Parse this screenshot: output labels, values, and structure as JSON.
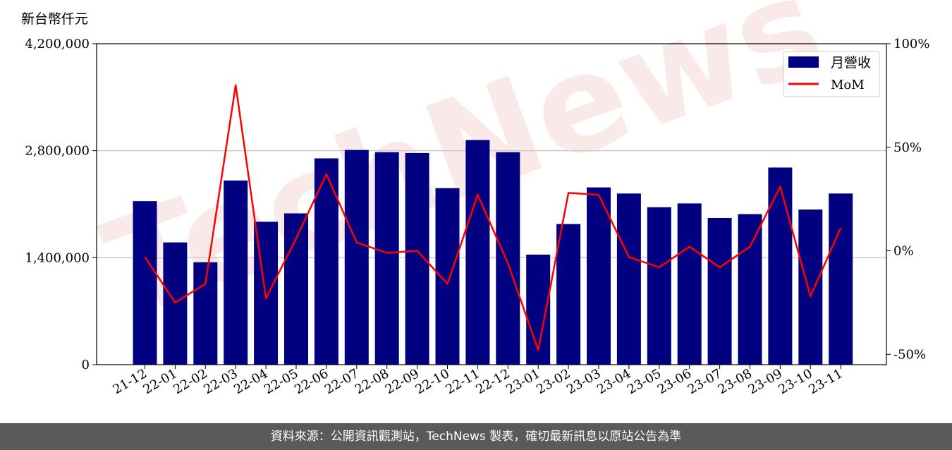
{
  "footer": {
    "source_text": "資料來源：公開資訊觀測站，TechNews 製表，確切最新訊息以原站公告為準"
  },
  "watermark": {
    "text": "TechNews"
  },
  "colors": {
    "bar": "#000080",
    "line": "#ff0000",
    "grid": "#cccccc",
    "watermark": "#e89a9a"
  },
  "chart_data": {
    "type": "bar",
    "title": "",
    "ylabel": "新台幣仟元",
    "y_ticks": [
      "0",
      "1,400,000",
      "2,800,000",
      "4,200,000"
    ],
    "ylim": [
      0,
      4200000
    ],
    "y2lim": [
      -55,
      100
    ],
    "y2_ticks": [
      "-50%",
      "0%",
      "50%",
      "100%"
    ],
    "y2_tick_values": [
      -50,
      0,
      50,
      100
    ],
    "grid": "horizontal",
    "legend_position": "top-right",
    "categories": [
      "21-12",
      "22-01",
      "22-02",
      "22-03",
      "22-04",
      "22-05",
      "22-06",
      "22-07",
      "22-08",
      "22-09",
      "22-10",
      "22-11",
      "22-12",
      "23-01",
      "23-02",
      "23-03",
      "23-04",
      "23-05",
      "23-06",
      "23-07",
      "23-08",
      "23-09",
      "23-10",
      "23-11"
    ],
    "series": [
      {
        "name": "月營收",
        "type": "bar",
        "axis": "left",
        "values": [
          2140000,
          1600000,
          1340000,
          2410000,
          1870000,
          1980000,
          2700000,
          2810000,
          2780000,
          2770000,
          2310000,
          2940000,
          2780000,
          1440000,
          1840000,
          2320000,
          2240000,
          2060000,
          2110000,
          1920000,
          1970000,
          2580000,
          2030000,
          2240000
        ]
      },
      {
        "name": "MoM",
        "type": "line",
        "axis": "right",
        "values": [
          -3,
          -25,
          -16,
          80,
          -23,
          6,
          37,
          4,
          -1,
          0,
          -16,
          27,
          -6,
          -48,
          28,
          27,
          -3,
          -8,
          2,
          -8,
          2,
          31,
          -22,
          11
        ]
      }
    ]
  }
}
